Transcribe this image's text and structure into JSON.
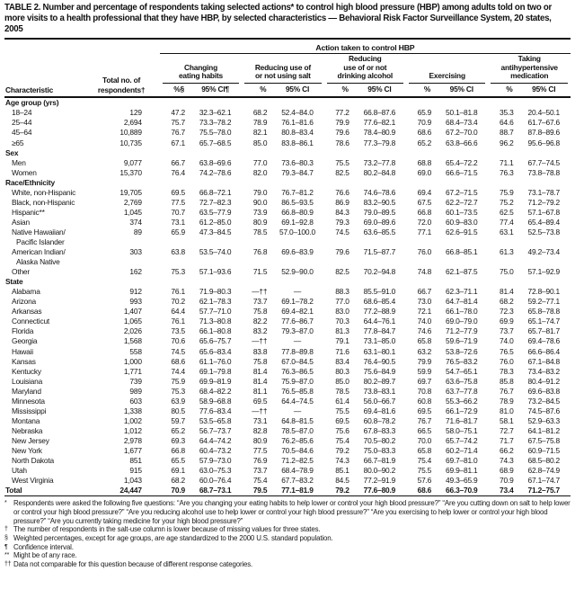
{
  "title": "TABLE 2. Number and percentage of respondents taking selected actions* to control high blood pressure (HBP) among adults told on two or more visits to a health professional that they have HBP, by selected characteristics — Behavioral Risk Factor Surveillance System, 20 states, 2005",
  "table": {
    "spanner_label": "Action taken to control HBP",
    "characteristic_header": "Characteristic",
    "total_header": "Total no. of respondents†",
    "groups": [
      {
        "label": "Changing\neating habits",
        "pct_header": "%§",
        "ci_header": "95% CI¶"
      },
      {
        "label": "Reducing use of\nor not using salt",
        "pct_header": "%",
        "ci_header": "95% CI"
      },
      {
        "label": "Reducing\nuse of or not\ndrinking alcohol",
        "pct_header": "%",
        "ci_header": "95% CI"
      },
      {
        "label": "Exercising",
        "pct_header": "%",
        "ci_header": "95% CI"
      },
      {
        "label": "Taking\nantihypertensive\nmedication",
        "pct_header": "%",
        "ci_header": "95% CI"
      }
    ],
    "sections": [
      {
        "label": "Age group (yrs)",
        "rows": [
          {
            "label": "18–24",
            "total": "129",
            "values": [
              "47.2",
              "32.3–62.1",
              "68.2",
              "52.4–84.0",
              "77.2",
              "66.8–87.6",
              "65.9",
              "50.1–81.8",
              "35.3",
              "20.4–50.1"
            ]
          },
          {
            "label": "25–44",
            "total": "2,694",
            "values": [
              "75.7",
              "73.3–78.2",
              "78.9",
              "76.1–81.6",
              "79.9",
              "77.6–82.1",
              "70.9",
              "68.4–73.4",
              "64.6",
              "61.7–67.6"
            ]
          },
          {
            "label": "45–64",
            "total": "10,889",
            "values": [
              "76.7",
              "75.5–78.0",
              "82.1",
              "80.8–83.4",
              "79.6",
              "78.4–80.9",
              "68.6",
              "67.2–70.0",
              "88.7",
              "87.8–89.6"
            ]
          },
          {
            "label": "≥65",
            "total": "10,735",
            "values": [
              "67.1",
              "65.7–68.5",
              "85.0",
              "83.8–86.1",
              "78.6",
              "77.3–79.8",
              "65.2",
              "63.8–66.6",
              "96.2",
              "95.6–96.8"
            ]
          }
        ]
      },
      {
        "label": "Sex",
        "rows": [
          {
            "label": "Men",
            "total": "9,077",
            "values": [
              "66.7",
              "63.8–69.6",
              "77.0",
              "73.6–80.3",
              "75.5",
              "73.2–77.8",
              "68.8",
              "65.4–72.2",
              "71.1",
              "67.7–74.5"
            ]
          },
          {
            "label": "Women",
            "total": "15,370",
            "values": [
              "76.4",
              "74.2–78.6",
              "82.0",
              "79.3–84.7",
              "82.5",
              "80.2–84.8",
              "69.0",
              "66.6–71.5",
              "76.3",
              "73.8–78.8"
            ]
          }
        ]
      },
      {
        "label": "Race/Ethnicity",
        "rows": [
          {
            "label": "White, non-Hispanic",
            "total": "19,705",
            "values": [
              "69.5",
              "66.8–72.1",
              "79.0",
              "76.7–81.2",
              "76.6",
              "74.6–78.6",
              "69.4",
              "67.2–71.5",
              "75.9",
              "73.1–78.7"
            ]
          },
          {
            "label": "Black, non-Hispanic",
            "total": "2,769",
            "values": [
              "77.5",
              "72.7–82.3",
              "90.0",
              "86.5–93.5",
              "86.9",
              "83.2–90.5",
              "67.5",
              "62.2–72.7",
              "75.2",
              "71.2–79.2"
            ]
          },
          {
            "label": "Hispanic**",
            "total": "1,045",
            "values": [
              "70.7",
              "63.5–77.9",
              "73.9",
              "66.8–80.9",
              "84.3",
              "79.0–89.5",
              "66.8",
              "60.1–73.5",
              "62.5",
              "57.1–67.8"
            ]
          },
          {
            "label": "Asian",
            "total": "374",
            "values": [
              "73.1",
              "61.2–85.0",
              "80.9",
              "69.1–92.8",
              "79.3",
              "69.0–89.6",
              "72.0",
              "60.9–83.0",
              "77.4",
              "65.4–89.4"
            ]
          },
          {
            "label": "Native Hawaiian/",
            "label2": "Pacific Islander",
            "total": "89",
            "values": [
              "65.9",
              "47.3–84.5",
              "78.5",
              "57.0–100.0",
              "74.5",
              "63.6–85.5",
              "77.1",
              "62.6–91.5",
              "63.1",
              "52.5–73.8"
            ]
          },
          {
            "label": "American Indian/",
            "label2": "Alaska Native",
            "total": "303",
            "values": [
              "63.8",
              "53.5–74.0",
              "76.8",
              "69.6–83.9",
              "79.6",
              "71.5–87.7",
              "76.0",
              "66.8–85.1",
              "61.3",
              "49.2–73.4"
            ]
          },
          {
            "label": "Other",
            "total": "162",
            "values": [
              "75.3",
              "57.1–93.6",
              "71.5",
              "52.9–90.0",
              "82.5",
              "70.2–94.8",
              "74.8",
              "62.1–87.5",
              "75.0",
              "57.1–92.9"
            ]
          }
        ]
      },
      {
        "label": "State",
        "rows": [
          {
            "label": "Alabama",
            "total": "912",
            "values": [
              "76.1",
              "71.9–80.3",
              "—††",
              "—",
              "88.3",
              "85.5–91.0",
              "66.7",
              "62.3–71.1",
              "81.4",
              "72.8–90.1"
            ]
          },
          {
            "label": "Arizona",
            "total": "993",
            "values": [
              "70.2",
              "62.1–78.3",
              "73.7",
              "69.1–78.2",
              "77.0",
              "68.6–85.4",
              "73.0",
              "64.7–81.4",
              "68.2",
              "59.2–77.1"
            ]
          },
          {
            "label": "Arkansas",
            "total": "1,407",
            "values": [
              "64.4",
              "57.7–71.0",
              "75.8",
              "69.4–82.1",
              "83.0",
              "77.2–88.9",
              "72.1",
              "66.1–78.0",
              "72.3",
              "65.8–78.8"
            ]
          },
          {
            "label": "Connecticut",
            "total": "1,065",
            "values": [
              "76.1",
              "71.3–80.8",
              "82.2",
              "77.6–86.7",
              "70.3",
              "64.4–76.1",
              "74.0",
              "69.0–79.0",
              "69.9",
              "65.1–74.7"
            ]
          },
          {
            "label": "Florida",
            "total": "2,026",
            "values": [
              "73.5",
              "66.1–80.8",
              "83.2",
              "79.3–87.0",
              "81.3",
              "77.8–84.7",
              "74.6",
              "71.2–77.9",
              "73.7",
              "65.7–81.7"
            ]
          },
          {
            "label": "Georgia",
            "total": "1,568",
            "values": [
              "70.6",
              "65.6–75.7",
              "—††",
              "—",
              "79.1",
              "73.1–85.0",
              "65.8",
              "59.6–71.9",
              "74.0",
              "69.4–78.6"
            ]
          },
          {
            "label": "Hawaii",
            "total": "558",
            "values": [
              "74.5",
              "65.6–83.4",
              "83.8",
              "77.8–89.8",
              "71.6",
              "63.1–80.1",
              "63.2",
              "53.8–72.6",
              "76.5",
              "66.6–86.4"
            ]
          },
          {
            "label": "Kansas",
            "total": "1,000",
            "values": [
              "68.6",
              "61.1–76.0",
              "75.8",
              "67.0–84.5",
              "83.4",
              "76.4–90.5",
              "79.9",
              "76.5–83.2",
              "76.0",
              "67.1–84.8"
            ]
          },
          {
            "label": "Kentucky",
            "total": "1,771",
            "values": [
              "74.4",
              "69.1–79.8",
              "81.4",
              "76.3–86.5",
              "80.3",
              "75.6–84.9",
              "59.9",
              "54.7–65.1",
              "78.3",
              "73.4–83.2"
            ]
          },
          {
            "label": "Louisiana",
            "total": "739",
            "values": [
              "75.9",
              "69.9–81.9",
              "81.4",
              "75.9–87.0",
              "85.0",
              "80.2–89.7",
              "69.7",
              "63.6–75.8",
              "85.8",
              "80.4–91.2"
            ]
          },
          {
            "label": "Maryland",
            "total": "989",
            "values": [
              "75.3",
              "68.4–82.2",
              "81.1",
              "76.5–85.8",
              "78.5",
              "73.8–83.1",
              "70.8",
              "63.7–77.8",
              "76.7",
              "69.6–83.8"
            ]
          },
          {
            "label": "Minnesota",
            "total": "603",
            "values": [
              "63.9",
              "58.9–68.8",
              "69.5",
              "64.4–74.5",
              "61.4",
              "56.0–66.7",
              "60.8",
              "55.3–66.2",
              "78.9",
              "73.2–84.5"
            ]
          },
          {
            "label": "Mississippi",
            "total": "1,338",
            "values": [
              "80.5",
              "77.6–83.4",
              "—††",
              "—",
              "75.5",
              "69.4–81.6",
              "69.5",
              "66.1–72.9",
              "81.0",
              "74.5–87.6"
            ]
          },
          {
            "label": "Montana",
            "total": "1,002",
            "values": [
              "59.7",
              "53.5–65.8",
              "73.1",
              "64.8–81.5",
              "69.5",
              "60.8–78.2",
              "76.7",
              "71.6–81.7",
              "58.1",
              "52.9–63.3"
            ]
          },
          {
            "label": "Nebraska",
            "total": "1,012",
            "values": [
              "65.2",
              "56.7–73.7",
              "82.8",
              "78.5–87.0",
              "75.6",
              "67.8–83.3",
              "66.5",
              "58.0–75.1",
              "72.7",
              "64.1–81.2"
            ]
          },
          {
            "label": "New Jersey",
            "total": "2,978",
            "values": [
              "69.3",
              "64.4–74.2",
              "80.9",
              "76.2–85.6",
              "75.4",
              "70.5–80.2",
              "70.0",
              "65.7–74.2",
              "71.7",
              "67.5–75.8"
            ]
          },
          {
            "label": "New York",
            "total": "1,677",
            "values": [
              "66.8",
              "60.4–73.2",
              "77.5",
              "70.5–84.6",
              "79.2",
              "75.0–83.3",
              "65.8",
              "60.2–71.4",
              "66.2",
              "60.9–71.5"
            ]
          },
          {
            "label": "North Dakota",
            "total": "851",
            "values": [
              "65.5",
              "57.9–73.0",
              "76.9",
              "71.2–82.5",
              "74.3",
              "66.7–81.9",
              "75.4",
              "69.7–81.0",
              "74.3",
              "68.5–80.2"
            ]
          },
          {
            "label": "Utah",
            "total": "915",
            "values": [
              "69.1",
              "63.0–75.3",
              "73.7",
              "68.4–78.9",
              "85.1",
              "80.0–90.2",
              "75.5",
              "69.9–81.1",
              "68.9",
              "62.8–74.9"
            ]
          },
          {
            "label": "West Virginia",
            "total": "1,043",
            "values": [
              "68.2",
              "60.0–76.4",
              "75.4",
              "67.7–83.2",
              "84.5",
              "77.2–91.9",
              "57.6",
              "49.3–65.9",
              "70.9",
              "67.1–74.7"
            ]
          }
        ]
      }
    ],
    "total_row": {
      "label": "Total",
      "total": "24,447",
      "values": [
        "70.9",
        "68.7–73.1",
        "79.5",
        "77.1–81.9",
        "79.2",
        "77.6–80.9",
        "68.6",
        "66.3–70.9",
        "73.4",
        "71.2–75.7"
      ]
    }
  },
  "footnotes": [
    {
      "marker": "*",
      "text": "Respondents were asked the following five questions: “Are you changing your eating habits to help lower or control your high blood pressure?” “Are you cutting down on salt to help lower or control your high blood pressure?” “Are you reducing alcohol use to help lower or control your high blood pressure?” “Are you exercising to help lower or control your high blood pressure?” “Are you currently taking medicine for your high blood pressure?”"
    },
    {
      "marker": "†",
      "text": "The number of respondents in the salt-use column is lower because of missing values for three states."
    },
    {
      "marker": "§",
      "text": "Weighted percentages, except for age groups, are age standardized to the 2000 U.S. standard population."
    },
    {
      "marker": "¶",
      "text": "Confidence interval."
    },
    {
      "marker": "**",
      "text": "Might be of any race."
    },
    {
      "marker": "††",
      "text": "Data not comparable for this question because of different response categories."
    }
  ]
}
